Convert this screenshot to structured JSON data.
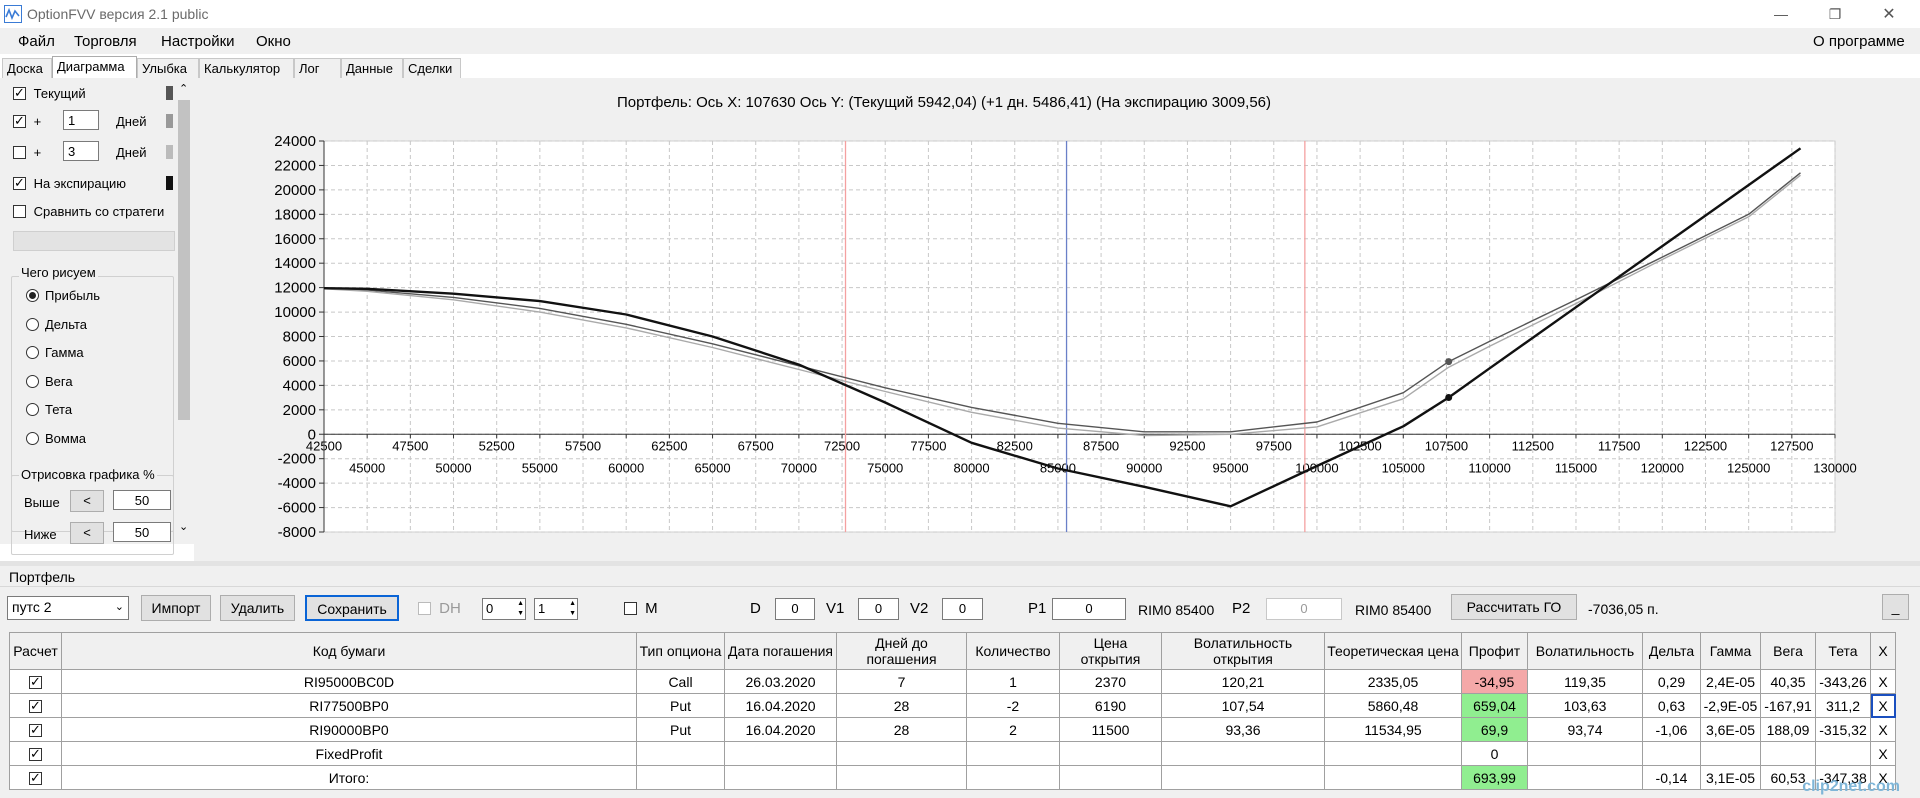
{
  "app": {
    "title": "OptionFVV версия 2.1 public",
    "window_buttons": [
      "minimize-icon",
      "restore-icon",
      "close-icon"
    ]
  },
  "menu": {
    "items": [
      "Файл",
      "Торговля",
      "Настройки",
      "Окно"
    ],
    "right_item": "О программе"
  },
  "tabs": [
    "Доска",
    "Диаграмма",
    "Улыбка",
    "Калькулятор",
    "Лог",
    "Данные",
    "Сделки"
  ],
  "active_tab": "Диаграмма",
  "left_panel": {
    "current_label": "Текущий",
    "plus_sign": "+",
    "plus1_days_value": "1",
    "plus2_days_value": "3",
    "days_label": "Дней",
    "expiration_label": "На экспирацию",
    "compare_label": "Сравнить со стратеги",
    "draw_group_title": "Чего рисуем",
    "draw_options": [
      "Прибыль",
      "Дельта",
      "Гамма",
      "Вега",
      "Тета",
      "Вомма"
    ],
    "selected_option": "Прибыль",
    "render_group_title": "Отрисовка графика %",
    "above_label": "Выше",
    "above_value": "50",
    "below_label": "Ниже",
    "below_value": "50",
    "step_button": "<",
    "colors": {
      "current": "#555555",
      "plus1": "#999999",
      "plus2": "#bbbbbb",
      "expiration": "#111111"
    }
  },
  "chart_data": {
    "type": "line",
    "title": "Портфель: Ось X: 107630 Ось Y:  (Текущий 5942,04)  (+1 дн. 5486,41)  (На экспирацию 3009,56)",
    "x_ticks_upper": [
      "42500",
      "47500",
      "52500",
      "57500",
      "62500",
      "67500",
      "72500",
      "77500",
      "82500",
      "87500",
      "92500",
      "97500",
      "102500",
      "107500",
      "112500",
      "117500",
      "122500",
      "127500"
    ],
    "x_ticks_lower": [
      "45000",
      "50000",
      "55000",
      "60000",
      "65000",
      "70000",
      "75000",
      "80000",
      "85000",
      "90000",
      "95000",
      "100000",
      "105000",
      "110000",
      "115000",
      "120000",
      "125000",
      "130000"
    ],
    "y_ticks": [
      "24000",
      "22000",
      "20000",
      "18000",
      "16000",
      "14000",
      "12000",
      "10000",
      "8000",
      "6000",
      "4000",
      "2000",
      "0",
      "-2000",
      "-4000",
      "-6000",
      "-8000"
    ],
    "xlim": [
      42500,
      130000
    ],
    "ylim": [
      -8000,
      24000
    ],
    "grid": true,
    "vertical_markers": [
      {
        "x": 72700,
        "color": "#f4a0a0"
      },
      {
        "x": 85500,
        "color": "#6a80c8"
      },
      {
        "x": 99300,
        "color": "#f4a0a0"
      }
    ],
    "series": [
      {
        "name": "Текущий",
        "color": "#555555",
        "x": [
          42500,
          45000,
          50000,
          55000,
          60000,
          65000,
          70000,
          75000,
          80000,
          85000,
          90000,
          95000,
          100000,
          105000,
          107630,
          110000,
          115000,
          120000,
          125000,
          128000
        ],
        "y": [
          11950,
          11800,
          11200,
          10300,
          9000,
          7400,
          5600,
          3800,
          2200,
          900,
          200,
          200,
          1000,
          3400,
          5942,
          7600,
          11000,
          14500,
          18000,
          21400
        ]
      },
      {
        "name": "+1 дн.",
        "color": "#aaaaaa",
        "x": [
          42500,
          45000,
          50000,
          55000,
          60000,
          65000,
          70000,
          75000,
          80000,
          85000,
          90000,
          95000,
          100000,
          105000,
          107630,
          110000,
          115000,
          120000,
          125000,
          128000
        ],
        "y": [
          11900,
          11700,
          11000,
          10000,
          8700,
          7100,
          5300,
          3500,
          1800,
          500,
          -100,
          0,
          600,
          2900,
          5486,
          7200,
          10700,
          14300,
          17800,
          21200
        ]
      },
      {
        "name": "На экспирацию",
        "color": "#111111",
        "x": [
          42500,
          45000,
          50000,
          55000,
          60000,
          65000,
          70000,
          75000,
          80000,
          85000,
          90000,
          95000,
          100000,
          105000,
          107630,
          110000,
          115000,
          120000,
          125000,
          128000
        ],
        "y": [
          11950,
          11900,
          11500,
          10900,
          9800,
          8000,
          5700,
          2600,
          -700,
          -2800,
          -4300,
          -5900,
          -2600,
          650,
          3010,
          5400,
          10400,
          15400,
          20400,
          23400
        ]
      }
    ],
    "markers": [
      {
        "x": 107630,
        "y": 5942,
        "color": "#555555"
      },
      {
        "x": 107630,
        "y": 3010,
        "color": "#111111"
      }
    ]
  },
  "portfolio": {
    "section_title": "Портфель",
    "selected_portfolio": "путс 2",
    "import_button": "Импорт",
    "delete_button": "Удалить",
    "save_button": "Сохранить",
    "dh_label": "DH",
    "spin1_value": "0",
    "spin2_value": "1",
    "m_label": "M",
    "d_label": "D",
    "d_value": "0",
    "v1_label": "V1",
    "v1_value": "0",
    "v2_label": "V2",
    "v2_value": "0",
    "p1_label": "P1",
    "p1_value": "0",
    "p1_instrument": "RIM0 85400",
    "p2_label": "P2",
    "p2_value": "0",
    "p2_instrument": "RIM0 85400",
    "calc_go_button": "Рассчитать ГО",
    "go_result": "-7036,05 п.",
    "minimize_button": "_"
  },
  "table": {
    "headers": [
      "Расчет",
      "Код бумаги",
      "Тип опциона",
      "Дата погашения",
      "Дней до погашения",
      "Количество",
      "Цена открытия",
      "Волатильность открытия",
      "Теоретическая цена",
      "Профит",
      "Волатильность",
      "Дельта",
      "Гамма",
      "Вега",
      "Тета",
      "X"
    ],
    "rows": [
      [
        "",
        "RI95000BC0D",
        "Call",
        "26.03.2020",
        "7",
        "1",
        "2370",
        "120,21",
        "2335,05",
        "-34,95",
        "119,35",
        "0,29",
        "2,4E-05",
        "40,35",
        "-343,26",
        "X"
      ],
      [
        "",
        "RI77500BP0",
        "Put",
        "16.04.2020",
        "28",
        "-2",
        "6190",
        "107,54",
        "5860,48",
        "659,04",
        "103,63",
        "0,63",
        "-2,9E-05",
        "-167,91",
        "311,2",
        "X"
      ],
      [
        "",
        "RI90000BP0",
        "Put",
        "16.04.2020",
        "28",
        "2",
        "11500",
        "93,36",
        "11534,95",
        "69,9",
        "93,74",
        "-1,06",
        "3,6E-05",
        "188,09",
        "-315,32",
        "X"
      ],
      [
        "",
        "FixedProfit",
        "",
        "",
        "",
        "",
        "",
        "",
        "",
        "0",
        "",
        "",
        "",
        "",
        "",
        "X"
      ],
      [
        "",
        "Итого:",
        "",
        "",
        "",
        "",
        "",
        "",
        "",
        "693,99",
        "",
        "-0,14",
        "3,1E-05",
        "60,53",
        "-347,38",
        "X"
      ]
    ]
  },
  "watermark": "clip2net.com"
}
